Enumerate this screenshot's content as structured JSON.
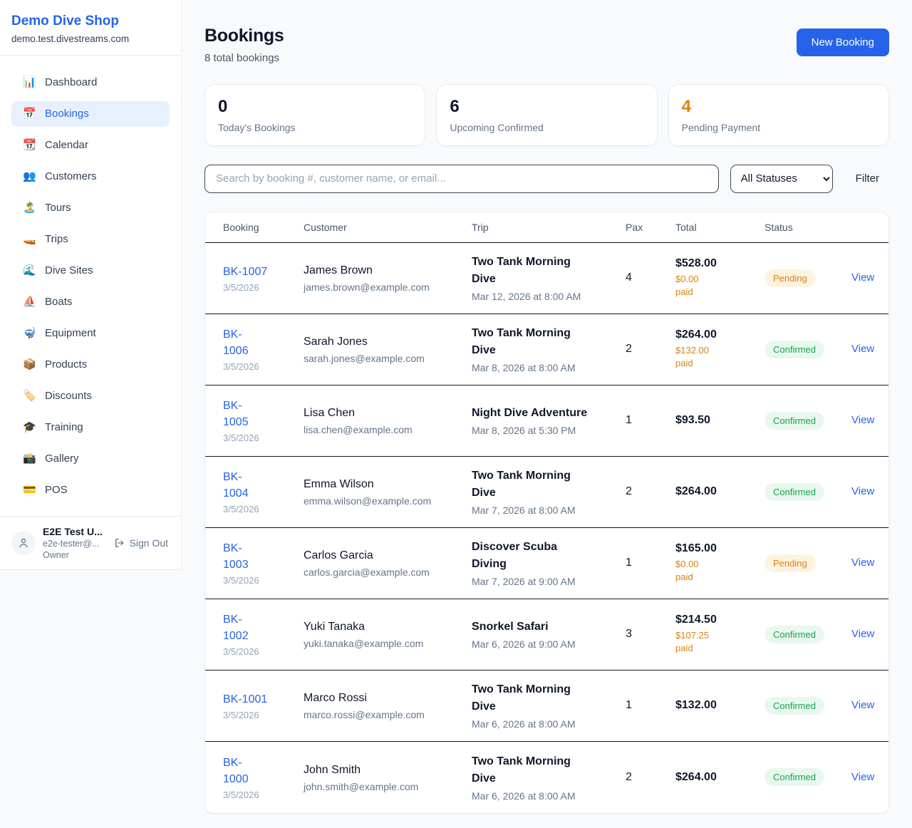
{
  "colors": {
    "accent_blue": "#2563eb",
    "nav_selected_bg": "#e8f0fd",
    "orange": "#e0820d",
    "pending_badge_bg": "#fdf3e0",
    "pending_badge_text": "#dd800f",
    "confirmed_badge_bg": "#e9f8ef",
    "confirmed_badge_text": "#16a34a",
    "page_bg": "#f8fafc",
    "row_divider": "#111827"
  },
  "sidebar": {
    "brand": "Demo Dive Shop",
    "domain": "demo.test.divestreams.com",
    "items": [
      {
        "icon": "📊",
        "icon_name": "bar-chart-icon",
        "label": "Dashboard",
        "active": false
      },
      {
        "icon": "📅",
        "icon_name": "calendar-date-icon",
        "label": "Bookings",
        "active": true
      },
      {
        "icon": "📆",
        "icon_name": "calendar-icon",
        "label": "Calendar",
        "active": false
      },
      {
        "icon": "👥",
        "icon_name": "people-icon",
        "label": "Customers",
        "active": false
      },
      {
        "icon": "🏝️",
        "icon_name": "island-icon",
        "label": "Tours",
        "active": false
      },
      {
        "icon": "🚤",
        "icon_name": "speedboat-icon",
        "label": "Trips",
        "active": false
      },
      {
        "icon": "🌊",
        "icon_name": "wave-icon",
        "label": "Dive Sites",
        "active": false
      },
      {
        "icon": "⛵",
        "icon_name": "sailboat-icon",
        "label": "Boats",
        "active": false
      },
      {
        "icon": "🤿",
        "icon_name": "diving-mask-icon",
        "label": "Equipment",
        "active": false
      },
      {
        "icon": "📦",
        "icon_name": "package-icon",
        "label": "Products",
        "active": false
      },
      {
        "icon": "🏷️",
        "icon_name": "tag-icon",
        "label": "Discounts",
        "active": false
      },
      {
        "icon": "🎓",
        "icon_name": "graduation-cap-icon",
        "label": "Training",
        "active": false
      },
      {
        "icon": "📸",
        "icon_name": "camera-icon",
        "label": "Gallery",
        "active": false
      },
      {
        "icon": "💳",
        "icon_name": "credit-card-icon",
        "label": "POS",
        "active": false
      }
    ],
    "user": {
      "name": "E2E Test U...",
      "email": "e2e-tester@...",
      "role": "Owner",
      "sign_out_label": "Sign Out"
    }
  },
  "header": {
    "title": "Bookings",
    "subtitle": "8 total bookings",
    "new_booking_label": "New Booking"
  },
  "stats": [
    {
      "value": "0",
      "label": "Today's Bookings"
    },
    {
      "value": "6",
      "label": "Upcoming Confirmed"
    },
    {
      "value": "4",
      "label": "Pending Payment"
    }
  ],
  "filters": {
    "search_placeholder": "Search by booking #, customer name, or email...",
    "status_selected": "All Statuses",
    "filter_label": "Filter"
  },
  "table": {
    "headers": [
      "Booking",
      "Customer",
      "Trip",
      "Pax",
      "Total",
      "Status"
    ],
    "view_label": "View",
    "rows": [
      {
        "id": "BK-1007",
        "date": "3/5/2026",
        "customer_name": "James Brown",
        "customer_email": "james.brown@example.com",
        "trip_name": "Two Tank Morning\nDive",
        "trip_datetime": "Mar 12, 2026 at 8:00 AM",
        "pax": "4",
        "total": "$528.00",
        "paid": "$0.00 paid",
        "status": "Pending"
      },
      {
        "id": "BK-\n1006",
        "date": "3/5/2026",
        "customer_name": "Sarah Jones",
        "customer_email": "sarah.jones@example.com",
        "trip_name": "Two Tank Morning\nDive",
        "trip_datetime": "Mar 8, 2026 at 8:00 AM",
        "pax": "2",
        "total": "$264.00",
        "paid": "$132.00 paid",
        "status": "Confirmed"
      },
      {
        "id": "BK-\n1005",
        "date": "3/5/2026",
        "customer_name": "Lisa Chen",
        "customer_email": "lisa.chen@example.com",
        "trip_name": "Night Dive Adventure",
        "trip_datetime": "Mar 8, 2026 at 5:30 PM",
        "pax": "1",
        "total": "$93.50",
        "paid": null,
        "status": "Confirmed"
      },
      {
        "id": "BK-\n1004",
        "date": "3/5/2026",
        "customer_name": "Emma Wilson",
        "customer_email": "emma.wilson@example.com",
        "trip_name": "Two Tank Morning\nDive",
        "trip_datetime": "Mar 7, 2026 at 8:00 AM",
        "pax": "2",
        "total": "$264.00",
        "paid": null,
        "status": "Confirmed"
      },
      {
        "id": "BK-\n1003",
        "date": "3/5/2026",
        "customer_name": "Carlos Garcia",
        "customer_email": "carlos.garcia@example.com",
        "trip_name": "Discover Scuba\nDiving",
        "trip_datetime": "Mar 7, 2026 at 9:00 AM",
        "pax": "1",
        "total": "$165.00",
        "paid": "$0.00 paid",
        "status": "Pending"
      },
      {
        "id": "BK-\n1002",
        "date": "3/5/2026",
        "customer_name": "Yuki Tanaka",
        "customer_email": "yuki.tanaka@example.com",
        "trip_name": "Snorkel Safari",
        "trip_datetime": "Mar 6, 2026 at 9:00 AM",
        "pax": "3",
        "total": "$214.50",
        "paid": "$107.25 paid",
        "status": "Confirmed"
      },
      {
        "id": "BK-1001",
        "date": "3/5/2026",
        "customer_name": "Marco Rossi",
        "customer_email": "marco.rossi@example.com",
        "trip_name": "Two Tank Morning\nDive",
        "trip_datetime": "Mar 6, 2026 at 8:00 AM",
        "pax": "1",
        "total": "$132.00",
        "paid": null,
        "status": "Confirmed"
      },
      {
        "id": "BK-\n1000",
        "date": "3/5/2026",
        "customer_name": "John Smith",
        "customer_email": "john.smith@example.com",
        "trip_name": "Two Tank Morning\nDive",
        "trip_datetime": "Mar 6, 2026 at 8:00 AM",
        "pax": "2",
        "total": "$264.00",
        "paid": null,
        "status": "Confirmed"
      }
    ]
  }
}
